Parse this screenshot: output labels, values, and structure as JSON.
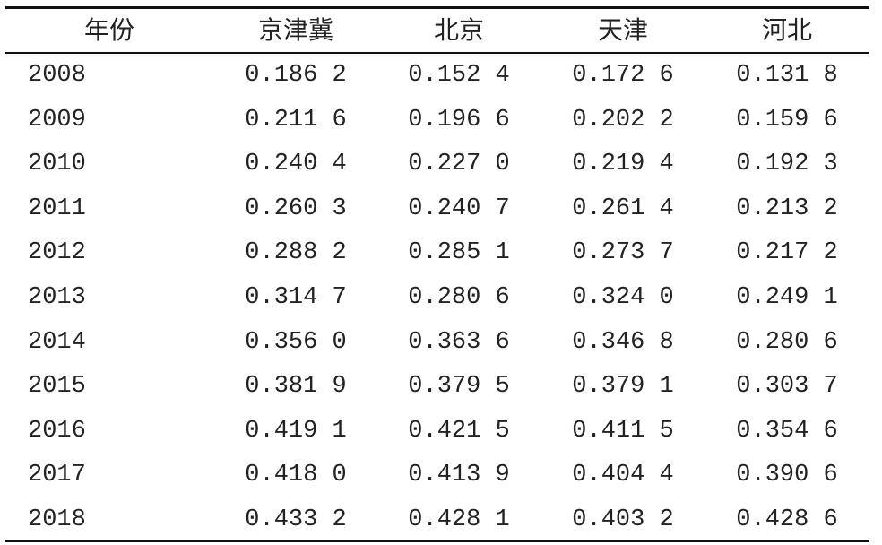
{
  "table": {
    "header": [
      "年份",
      "京津冀",
      "北京",
      "天津",
      "河北"
    ],
    "rows": [
      [
        "2008",
        "0.186 2",
        "0.152 4",
        "0.172 6",
        "0.131 8"
      ],
      [
        "2009",
        "0.211 6",
        "0.196 6",
        "0.202 2",
        "0.159 6"
      ],
      [
        "2010",
        "0.240 4",
        "0.227 0",
        "0.219 4",
        "0.192 3"
      ],
      [
        "2011",
        "0.260 3",
        "0.240 7",
        "0.261 4",
        "0.213 2"
      ],
      [
        "2012",
        "0.288 2",
        "0.285 1",
        "0.273 7",
        "0.217 2"
      ],
      [
        "2013",
        "0.314 7",
        "0.280 6",
        "0.324 0",
        "0.249 1"
      ],
      [
        "2014",
        "0.356 0",
        "0.363 6",
        "0.346 8",
        "0.280 6"
      ],
      [
        "2015",
        "0.381 9",
        "0.379 5",
        "0.379 1",
        "0.303 7"
      ],
      [
        "2016",
        "0.419 1",
        "0.421 5",
        "0.411 5",
        "0.354 6"
      ],
      [
        "2017",
        "0.418 0",
        "0.413 9",
        "0.404 4",
        "0.390 6"
      ],
      [
        "2018",
        "0.433 2",
        "0.428 1",
        "0.403 2",
        "0.428 6"
      ]
    ]
  }
}
